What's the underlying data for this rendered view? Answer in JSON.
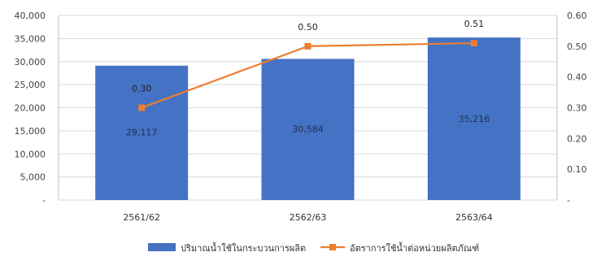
{
  "chart_data": {
    "type": "bar",
    "title": "",
    "categories": [
      "2561/62",
      "2562/63",
      "2563/64"
    ],
    "y_left": {
      "range": [
        0,
        40000
      ],
      "ticks": [
        "40,000",
        "35,000",
        "30,000",
        "25,000",
        "20,000",
        "15,000",
        "10,000",
        "5,000",
        "-"
      ]
    },
    "y_right": {
      "range": [
        0,
        0.6
      ],
      "ticks": [
        "0.60",
        "0.50",
        "0.40",
        "0.30",
        "0.20",
        "0.10",
        "-"
      ]
    },
    "series": [
      {
        "name": "ปริมาณน้ำใช้ในกระบวนการผลิต",
        "type": "bar",
        "axis": "left",
        "color": "#4472C4",
        "values": [
          29117,
          30584,
          35216
        ],
        "labels": [
          "29,117",
          "30,584",
          "35,216"
        ]
      },
      {
        "name": "อัตราการใช้น้ำต่อหน่วยผลิตภัณฑ์",
        "type": "line",
        "axis": "right",
        "color": "#ED7D31",
        "values": [
          0.3,
          0.5,
          0.51
        ],
        "labels": [
          "0.30",
          "0.50",
          "0.51"
        ]
      }
    ],
    "grid": true,
    "legend": "bottom"
  }
}
